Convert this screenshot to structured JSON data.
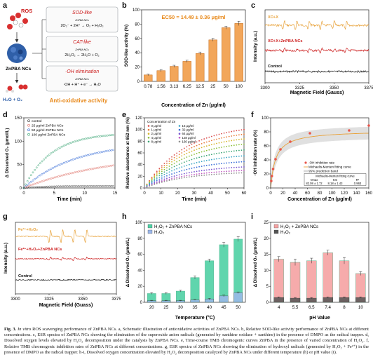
{
  "panel_a": {
    "label": "a",
    "ros": "ROS",
    "nanocluster": "ZnPBA NCs",
    "product": "H₂O + O₂",
    "subtitle": "Anti-oxidative activity",
    "box1_title": "SOD-like",
    "box1_eq": "2O₂⁻ + 2H⁺ → O₂ + H₂O₂",
    "box1_cat": "ZnPBA NCs",
    "box2_title": "CAT-like",
    "box2_eq": "2H₂O₂ → 2H₂O + O₂",
    "box2_cat": "ZnPBA NCs",
    "box3_title": "·OH elimination",
    "box3_eq": "·OH + H⁺ + e⁻ → H₂O",
    "box3_cat": "ZnPBA NCs",
    "colors": {
      "accent": "#e8891a",
      "title_red": "#cc1e1e",
      "box_border": "#9aa0a6"
    }
  },
  "panel_c": {
    "label": "c",
    "xlabel": "Magnetic Field (Gauss)",
    "ylabel": "Intensity (a.u.)",
    "ticks": [
      "3300",
      "3325",
      "3350",
      "3375"
    ],
    "traces": [
      {
        "name": "XO+X",
        "color": "#e8a23a"
      },
      {
        "name": "XO+X+ZnPBA NCs",
        "color": "#cc1e1e"
      },
      {
        "name": "Control",
        "color": "#111111"
      }
    ]
  },
  "panel_g": {
    "label": "g",
    "xlabel": "Magnetic Field (Guass)",
    "ylabel": "Intensity (a.u.)",
    "ticks": [
      "3300",
      "3325",
      "3350",
      "3375"
    ],
    "traces": [
      {
        "name": "Fe²⁺+H₂O₂",
        "color": "#e8a23a"
      },
      {
        "name": "Fe²⁺+H₂O₂+ZnPBA NCs",
        "color": "#cc1e1e"
      },
      {
        "name": "Control",
        "color": "#111111"
      }
    ]
  },
  "panel_f_table": {
    "title": "Michaelis-Menten fitting curve",
    "headers": [
      "Vmax",
      "Km",
      "R²"
    ],
    "values": [
      "82.08 ± 1.72",
      "8.18 ± 1.43",
      "0.963"
    ]
  },
  "chart_data": [
    {
      "id": "b",
      "type": "bar",
      "title": "EC50 = 14.49 ± 0.36 μg/ml",
      "xlabel": "Concentration of Zn (μg/ml)",
      "ylabel": "SOD-like activity (%)",
      "categories": [
        "0.78",
        "1.56",
        "3.13",
        "6.25",
        "12.5",
        "25",
        "50",
        "100"
      ],
      "values": [
        9,
        15,
        21,
        28,
        39,
        58,
        75,
        81
      ],
      "errors": [
        1,
        1.5,
        1.5,
        1.5,
        2,
        2,
        2,
        3
      ],
      "ylim": [
        0,
        100
      ],
      "yticks": [
        "0",
        "20",
        "40",
        "60",
        "80",
        "100"
      ],
      "color": "#f2a65a"
    },
    {
      "id": "d",
      "type": "scatter",
      "xlabel": "Time (min)",
      "ylabel": "Δ Dissolved O₂ (μmol/L)",
      "xlim": [
        0,
        15
      ],
      "ylim": [
        0,
        150
      ],
      "xticks": [
        "0",
        "5",
        "10",
        "15"
      ],
      "yticks": [
        "0",
        "50",
        "100",
        "150"
      ],
      "legend": [
        "control",
        "25 μg/ml ZnPBA NCs",
        "50 μg/ml ZnPBA NCs",
        "100 μg/ml ZnPBA NCs"
      ],
      "series": [
        {
          "name": "control",
          "color": "#444444",
          "plateau": 4,
          "rate": 0.3
        },
        {
          "name": "25 μg/ml ZnPBA NCs",
          "color": "#e0736a",
          "plateau": 75,
          "rate": 0.07
        },
        {
          "name": "50 μg/ml ZnPBA NCs",
          "color": "#3a6fd8",
          "plateau": 98,
          "rate": 0.12
        },
        {
          "name": "100 μg/ml ZnPBA NCs",
          "color": "#3aa574",
          "plateau": 118,
          "rate": 0.22
        }
      ]
    },
    {
      "id": "e",
      "type": "scatter",
      "xlabel": "Time (min)",
      "ylabel": "Relative absorbance at 652 nm (%)",
      "xlim": [
        0,
        60
      ],
      "ylim": [
        0,
        120
      ],
      "xticks": [
        "0",
        "10",
        "20",
        "30",
        "40",
        "50",
        "60"
      ],
      "yticks": [
        "0",
        "20",
        "40",
        "60",
        "80",
        "100",
        "120"
      ],
      "legend_title": "Concentration of Zn",
      "legend": [
        "0 μg/ml",
        "1 μg/ml",
        "2 μg/ml",
        "4 μg/ml",
        "8 μg/ml",
        "16 μg/ml",
        "32 μg/ml",
        "64 μg/ml",
        "128 μg/ml",
        "160 μg/ml"
      ],
      "series": [
        {
          "name": "0 μg/ml",
          "color": "#d94c4c",
          "end": 100
        },
        {
          "name": "1 μg/ml",
          "color": "#e87c3a",
          "end": 92
        },
        {
          "name": "2 μg/ml",
          "color": "#d6b62c",
          "end": 84
        },
        {
          "name": "4 μg/ml",
          "color": "#8cbf3a",
          "end": 75
        },
        {
          "name": "8 μg/ml",
          "color": "#3aa574",
          "end": 65
        },
        {
          "name": "16 μg/ml",
          "color": "#3aa5c4",
          "end": 55
        },
        {
          "name": "32 μg/ml",
          "color": "#3a6fd8",
          "end": 45
        },
        {
          "name": "64 μg/ml",
          "color": "#7a55d0",
          "end": 36
        },
        {
          "name": "128 μg/ml",
          "color": "#c058c0",
          "end": 30
        },
        {
          "name": "160 μg/ml",
          "color": "#909090",
          "end": 26
        }
      ]
    },
    {
      "id": "f",
      "type": "scatter",
      "xlabel": "Concentration of Zn (μg/ml)",
      "ylabel": "·OH inhibition rate (%)",
      "xlim": [
        0,
        160
      ],
      "ylim": [
        0,
        100
      ],
      "xticks": [
        "0",
        "20",
        "40",
        "60",
        "80",
        "100",
        "120",
        "140",
        "160"
      ],
      "yticks": [
        "0",
        "20",
        "40",
        "60",
        "80",
        "100"
      ],
      "legend": [
        "·OH inhibition rate",
        "Michaelis-Menten fitting curve",
        "95% prediction band"
      ],
      "points": [
        [
          1,
          10
        ],
        [
          2,
          17
        ],
        [
          4,
          27
        ],
        [
          8,
          41
        ],
        [
          16,
          55
        ],
        [
          32,
          66
        ],
        [
          64,
          78
        ],
        [
          128,
          82
        ],
        [
          160,
          89
        ]
      ],
      "vmax": 82.08,
      "km": 8.18,
      "color": "#e8554a"
    },
    {
      "id": "h",
      "type": "bar",
      "xlabel": "Temperature (°C)",
      "ylabel": "Δ Dissolved O₂ (μmol/L)",
      "categories": [
        "20",
        "25",
        "30",
        "35",
        "40",
        "45",
        "50"
      ],
      "ylim": [
        0,
        100
      ],
      "yticks": [
        "0",
        "20",
        "40",
        "60",
        "80",
        "100"
      ],
      "series": [
        {
          "name": "H₂O₂ + ZnPBA NCs",
          "color": "#4fd1a5",
          "values": [
            11,
            11,
            14,
            31,
            52,
            72,
            79
          ],
          "errors": [
            1,
            1,
            1,
            2,
            2,
            3,
            3
          ]
        },
        {
          "name": "H₂O₂",
          "color": "#9cb8ec",
          "values": [
            2,
            2,
            2,
            3,
            4,
            8,
            12
          ],
          "errors": [
            0.5,
            0.5,
            0.5,
            0.5,
            1,
            1,
            1
          ]
        }
      ]
    },
    {
      "id": "i",
      "type": "bar",
      "xlabel": "pH Value",
      "ylabel": "Δ Dissolved O₂ (μmol/L)",
      "categories": [
        "4",
        "5.5",
        "6.5",
        "7.4",
        "8",
        "10"
      ],
      "ylim": [
        0,
        25
      ],
      "yticks": [
        "0",
        "5",
        "10",
        "15",
        "20",
        "25"
      ],
      "series": [
        {
          "name": "H₂O₂ + ZnPBA NCs",
          "color": "#f6a3a3",
          "values": [
            13.5,
            12.5,
            13,
            15.5,
            13,
            9
          ],
          "errors": [
            0.8,
            1,
            0.8,
            0.8,
            1,
            0.6
          ]
        },
        {
          "name": "H₂O₂",
          "color": "#555555",
          "values": [
            1.5,
            1.3,
            1.3,
            1.5,
            1.5,
            1.5
          ],
          "errors": [
            0.2,
            0.2,
            0.2,
            0.2,
            0.2,
            0.2
          ]
        }
      ]
    }
  ],
  "caption": {
    "bold_head": "Fig. 3.",
    "italic": "In vitro",
    "text": "ROS scavenging performance of ZnPBA NCs. a, Schematic illustration of antioxidative activities of ZnPBA NCs. b, Relative SOD-like activity performance of ZnPBA NCs at different concentrations. c, ESR spectra of ZnPBA NCs showing the elimination of the superoxide anion radicals (generated by xanthine oxidase + xanthine) in the presence of DMPO as the radical trapper. d, Dissolved oxygen levels elevated by H₂O₂ decomposition under the catalysis by ZnPBA NCs. e, Time-course TMB chromogenic curves ZnPBA in the presence of varied concentration of H₂O₂. f, Relative TMB chromogenic inhibition rates of ZnPBA NCs at different concentrations. g, ESR spectra of ZnPBA NCs showing the elimination of hydroxyl radicals (generated by H₂O₂ + Fe²⁺) in the presence of DMPO as the radical trapper. h-i, Dissolved oxygen concentration elevated by H₂O₂ decomposition catalyzed by ZnPBA NCs under different temperature (h) or pH value (i)."
  }
}
